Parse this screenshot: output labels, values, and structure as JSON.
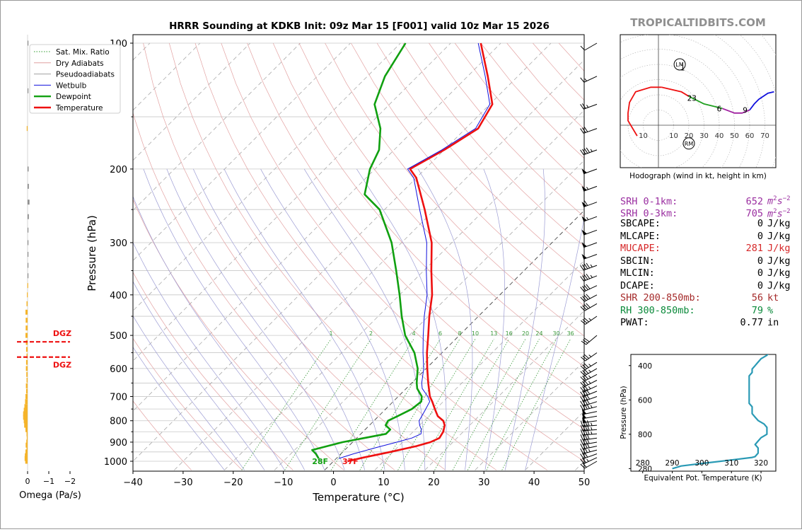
{
  "chart_data": {
    "type": "line",
    "title": "HRRR Sounding at KDKB Init: 09z Mar 15 [F001] valid 10z Mar 15 2026",
    "brand": "TROPICALTIDBITS.COM",
    "skewt": {
      "xlabel": "Temperature (°C)",
      "ylabel": "Pressure (hPa)",
      "xlim": [
        -40,
        50
      ],
      "ylim": [
        1050,
        100
      ],
      "yscale": "log",
      "x_ticks": [
        "−40",
        "−30",
        "−20",
        "−10",
        "0",
        "10",
        "20",
        "30",
        "40",
        "50"
      ],
      "p_ticks": [
        "100",
        "200",
        "300",
        "400",
        "500",
        "600",
        "700",
        "800",
        "900",
        "1000"
      ],
      "mix_ratio_labels": [
        "1",
        "2",
        "4",
        "6",
        "8",
        "10",
        "13",
        "16",
        "20",
        "24",
        "30",
        "36"
      ],
      "legend": {
        "location": "top-left",
        "entries": [
          {
            "label": "Sat. Mix. Ratio",
            "color": "#2a9a2a",
            "style": "dotted"
          },
          {
            "label": "Dry Adiabats",
            "color": "#e0a0a0",
            "style": "solid"
          },
          {
            "label": "Pseudoadiabats",
            "color": "#a0a0a0",
            "style": "solid"
          },
          {
            "label": "Wetbulb",
            "color": "#1010dd",
            "style": "solid"
          },
          {
            "label": "Dewpoint",
            "color": "#10a010",
            "style": "solid"
          },
          {
            "label": "Temperature",
            "color": "#ee1010",
            "style": "solid"
          }
        ]
      },
      "series": [
        {
          "name": "Temperature",
          "color": "#ee1010",
          "points": [
            [
              1000,
              2.8
            ],
            [
              980,
              5.2
            ],
            [
              950,
              9.5
            ],
            [
              920,
              13.5
            ],
            [
              900,
              15.5
            ],
            [
              880,
              16.5
            ],
            [
              850,
              16.0
            ],
            [
              820,
              15.0
            ],
            [
              800,
              13.8
            ],
            [
              780,
              11.8
            ],
            [
              750,
              9.8
            ],
            [
              720,
              7.8
            ],
            [
              700,
              6.3
            ],
            [
              650,
              3.3
            ],
            [
              600,
              0.2
            ],
            [
              550,
              -3.0
            ],
            [
              500,
              -6.2
            ],
            [
              450,
              -9.8
            ],
            [
              400,
              -13.5
            ],
            [
              350,
              -18.5
            ],
            [
              300,
              -24.0
            ],
            [
              250,
              -32.0
            ],
            [
              210,
              -40.0
            ],
            [
              200,
              -43.0
            ],
            [
              180,
              -40.0
            ],
            [
              160,
              -37.5
            ],
            [
              140,
              -39.5
            ],
            [
              120,
              -46.0
            ],
            [
              100,
              -54.0
            ]
          ]
        },
        {
          "name": "Dewpoint",
          "color": "#10a010",
          "points": [
            [
              985,
              -3.5
            ],
            [
              960,
              -5.0
            ],
            [
              940,
              -6.5
            ],
            [
              900,
              -2.0
            ],
            [
              860,
              5.0
            ],
            [
              840,
              5.0
            ],
            [
              820,
              3.2
            ],
            [
              800,
              2.8
            ],
            [
              780,
              3.8
            ],
            [
              750,
              5.2
            ],
            [
              720,
              5.6
            ],
            [
              700,
              4.7
            ],
            [
              670,
              2.2
            ],
            [
              650,
              1.0
            ],
            [
              600,
              -1.7
            ],
            [
              550,
              -5.5
            ],
            [
              500,
              -10.8
            ],
            [
              450,
              -15.3
            ],
            [
              400,
              -20.0
            ],
            [
              350,
              -25.5
            ],
            [
              300,
              -32.0
            ],
            [
              250,
              -41.0
            ],
            [
              230,
              -47.0
            ],
            [
              200,
              -51.0
            ],
            [
              180,
              -53.0
            ],
            [
              160,
              -57.0
            ],
            [
              140,
              -63.0
            ],
            [
              120,
              -66.5
            ],
            [
              100,
              -69.0
            ]
          ]
        },
        {
          "name": "Wetbulb",
          "color": "#1010dd",
          "points": [
            [
              985,
              0.5
            ],
            [
              960,
              2.5
            ],
            [
              930,
              5.5
            ],
            [
              900,
              8.8
            ],
            [
              880,
              11.0
            ],
            [
              860,
              12.0
            ],
            [
              840,
              11.2
            ],
            [
              820,
              10.0
            ],
            [
              800,
              9.0
            ],
            [
              760,
              8.2
            ],
            [
              720,
              7.3
            ],
            [
              700,
              5.9
            ],
            [
              670,
              3.2
            ],
            [
              650,
              2.0
            ],
            [
              600,
              -0.5
            ],
            [
              550,
              -3.8
            ],
            [
              500,
              -7.2
            ],
            [
              450,
              -10.8
            ],
            [
              400,
              -14.5
            ],
            [
              350,
              -19.5
            ],
            [
              300,
              -25.0
            ],
            [
              250,
              -33.0
            ],
            [
              210,
              -40.5
            ],
            [
              200,
              -43.5
            ],
            [
              180,
              -40.5
            ],
            [
              160,
              -38.0
            ],
            [
              140,
              -40.0
            ],
            [
              120,
              -46.5
            ],
            [
              100,
              -54.5
            ]
          ]
        }
      ],
      "surface_labels": {
        "dewpoint": "28F",
        "temperature": "37F"
      }
    },
    "omega": {
      "xlabel": "Omega (Pa/s)",
      "x_ticks": [
        "0",
        "−1",
        "−2"
      ],
      "dgz_label": "DGZ",
      "dgz_bounds_hpa": [
        510,
        570
      ],
      "bars": [
        [
          1000,
          0.11
        ],
        [
          985,
          0.14
        ],
        [
          970,
          0.13
        ],
        [
          950,
          0.1
        ],
        [
          930,
          0.05
        ],
        [
          915,
          0.09
        ],
        [
          900,
          0.06
        ],
        [
          880,
          0.04
        ],
        [
          860,
          0.05
        ],
        [
          840,
          0.1
        ],
        [
          820,
          0.16
        ],
        [
          800,
          0.18
        ],
        [
          785,
          0.21
        ],
        [
          770,
          0.21
        ],
        [
          755,
          0.18
        ],
        [
          740,
          0.15
        ],
        [
          720,
          0.12
        ],
        [
          700,
          0.1
        ],
        [
          680,
          0.07
        ],
        [
          660,
          0.08
        ],
        [
          640,
          0.05
        ],
        [
          620,
          0.06
        ],
        [
          600,
          0.08
        ],
        [
          580,
          0.07
        ],
        [
          560,
          0.05
        ],
        [
          540,
          0.07
        ],
        [
          520,
          0.08
        ],
        [
          500,
          0.1
        ],
        [
          480,
          0.09
        ],
        [
          460,
          0.09
        ],
        [
          440,
          0.1
        ],
        [
          420,
          0.05
        ],
        [
          400,
          0.03
        ],
        [
          380,
          0.01
        ],
        [
          360,
          -0.01
        ],
        [
          340,
          -0.01
        ],
        [
          320,
          -0.02
        ],
        [
          300,
          -0.02
        ],
        [
          280,
          -0.02
        ],
        [
          260,
          -0.06
        ],
        [
          240,
          -0.09
        ],
        [
          220,
          -0.06
        ],
        [
          200,
          -0.05
        ],
        [
          160,
          0.04
        ],
        [
          130,
          -0.02
        ],
        [
          100,
          -0.03
        ]
      ]
    },
    "winds": {
      "barbs": [
        [
          1000,
          240,
          20
        ],
        [
          980,
          245,
          25
        ],
        [
          960,
          250,
          30
        ],
        [
          940,
          255,
          35
        ],
        [
          920,
          258,
          38
        ],
        [
          900,
          260,
          40
        ],
        [
          880,
          262,
          42
        ],
        [
          860,
          265,
          45
        ],
        [
          840,
          265,
          45
        ],
        [
          820,
          265,
          45
        ],
        [
          800,
          262,
          50
        ],
        [
          780,
          260,
          50
        ],
        [
          760,
          258,
          48
        ],
        [
          740,
          255,
          45
        ],
        [
          720,
          252,
          40
        ],
        [
          700,
          250,
          40
        ],
        [
          680,
          248,
          38
        ],
        [
          660,
          245,
          35
        ],
        [
          640,
          243,
          35
        ],
        [
          620,
          242,
          35
        ],
        [
          600,
          240,
          35
        ],
        [
          580,
          238,
          35
        ],
        [
          550,
          235,
          35
        ],
        [
          500,
          230,
          30
        ],
        [
          450,
          235,
          35
        ],
        [
          420,
          240,
          40
        ],
        [
          400,
          242,
          40
        ],
        [
          380,
          245,
          40
        ],
        [
          360,
          248,
          45
        ],
        [
          340,
          250,
          45
        ],
        [
          320,
          250,
          50
        ],
        [
          300,
          250,
          50
        ],
        [
          280,
          250,
          50
        ],
        [
          260,
          250,
          55
        ],
        [
          240,
          250,
          60
        ],
        [
          220,
          250,
          55
        ],
        [
          200,
          250,
          50
        ],
        [
          180,
          250,
          45
        ],
        [
          160,
          250,
          30
        ],
        [
          140,
          250,
          25
        ],
        [
          120,
          245,
          15
        ],
        [
          100,
          240,
          10
        ]
      ]
    },
    "hodograph": {
      "title": "Hodograph (wind in kt, height in km)",
      "ring_labels": [
        "10",
        "10",
        "20",
        "30",
        "40",
        "50",
        "60",
        "70"
      ],
      "segments": [
        {
          "color": "#ee1010",
          "points": [
            [
              -14,
              -7
            ],
            [
              -20,
              3
            ],
            [
              -20,
              8
            ],
            [
              -19,
              15
            ],
            [
              -15,
              22
            ],
            [
              -5,
              25
            ],
            [
              2,
              25
            ]
          ]
        },
        {
          "color": "#ee1010",
          "points": [
            [
              2,
              25
            ],
            [
              15,
              22
            ],
            [
              20,
              19
            ]
          ]
        },
        {
          "color": "#20a020",
          "points": [
            [
              20,
              19
            ],
            [
              30,
              14
            ],
            [
              42,
              11
            ]
          ]
        },
        {
          "color": "#a020a0",
          "points": [
            [
              42,
              11
            ],
            [
              50,
              8
            ],
            [
              55,
              8
            ],
            [
              60,
              10
            ]
          ]
        },
        {
          "color": "#1010dd",
          "points": [
            [
              60,
              10
            ],
            [
              63,
              14
            ],
            [
              66,
              17
            ],
            [
              72,
              21
            ],
            [
              76,
              22
            ]
          ]
        }
      ],
      "height_labels": [
        {
          "label": "1",
          "u": 16,
          "v": 38
        },
        {
          "label": "23",
          "u": 22,
          "v": 18
        },
        {
          "label": "6",
          "u": 40,
          "v": 11
        },
        {
          "label": "9",
          "u": 57,
          "v": 10
        }
      ],
      "markers": [
        {
          "label": "LM",
          "u": 14,
          "v": 40
        },
        {
          "label": "RM",
          "u": 20,
          "v": -12
        }
      ]
    },
    "indices": [
      {
        "label": "SRH 0-1km:",
        "value": "652",
        "unit": "m2s-2",
        "color": "#9a2ea0"
      },
      {
        "label": "SRH 0-3km:",
        "value": "705",
        "unit": "m2s-2",
        "color": "#9a2ea0"
      },
      {
        "label": "SBCAPE:",
        "value": "0",
        "unit": "J/kg",
        "color": "#000000"
      },
      {
        "label": "MLCAPE:",
        "value": "0",
        "unit": "J/kg",
        "color": "#000000"
      },
      {
        "label": "MUCAPE:",
        "value": "281",
        "unit": "J/kg",
        "color": "#d62728"
      },
      {
        "label": "SBCIN:",
        "value": "0",
        "unit": "J/kg",
        "color": "#000000"
      },
      {
        "label": "MLCIN:",
        "value": "0",
        "unit": "J/kg",
        "color": "#000000"
      },
      {
        "label": "DCAPE:",
        "value": "0",
        "unit": "J/kg",
        "color": "#000000"
      },
      {
        "label": "SHR 200-850mb:",
        "value": "56",
        "unit": "kt",
        "color": "#a52a2a"
      },
      {
        "label": "RH 300-850mb:",
        "value": "79",
        "unit": "%",
        "color": "#0a8a3a"
      },
      {
        "label": "PWAT:",
        "value": "0.77",
        "unit": "in",
        "color": "#000000"
      }
    ],
    "theta_e": {
      "xlabel": "Equivalent Pot. Temperature (K)",
      "ylabel": "Pressure (hPa)",
      "x_ticks": [
        "280",
        "290",
        "300",
        "310",
        "320"
      ],
      "y_ticks": [
        "400",
        "600",
        "800",
        "280"
      ],
      "color": "#2a9ab5",
      "points": [
        [
          1000,
          290
        ],
        [
          985,
          293
        ],
        [
          970,
          300
        ],
        [
          950,
          310
        ],
        [
          935,
          317
        ],
        [
          930,
          318
        ],
        [
          910,
          319
        ],
        [
          880,
          319
        ],
        [
          860,
          318
        ],
        [
          840,
          319
        ],
        [
          820,
          320
        ],
        [
          800,
          322
        ],
        [
          780,
          322
        ],
        [
          760,
          322
        ],
        [
          740,
          321
        ],
        [
          720,
          319
        ],
        [
          700,
          318
        ],
        [
          680,
          317
        ],
        [
          660,
          317
        ],
        [
          640,
          317
        ],
        [
          620,
          316
        ],
        [
          600,
          316
        ],
        [
          580,
          316
        ],
        [
          560,
          316
        ],
        [
          540,
          316
        ],
        [
          520,
          316
        ],
        [
          500,
          316
        ],
        [
          480,
          316
        ],
        [
          460,
          316
        ],
        [
          440,
          317
        ],
        [
          420,
          317
        ],
        [
          400,
          318
        ],
        [
          380,
          319
        ],
        [
          360,
          320
        ],
        [
          340,
          322
        ],
        [
          320,
          323
        ],
        [
          300,
          324
        ]
      ]
    }
  }
}
